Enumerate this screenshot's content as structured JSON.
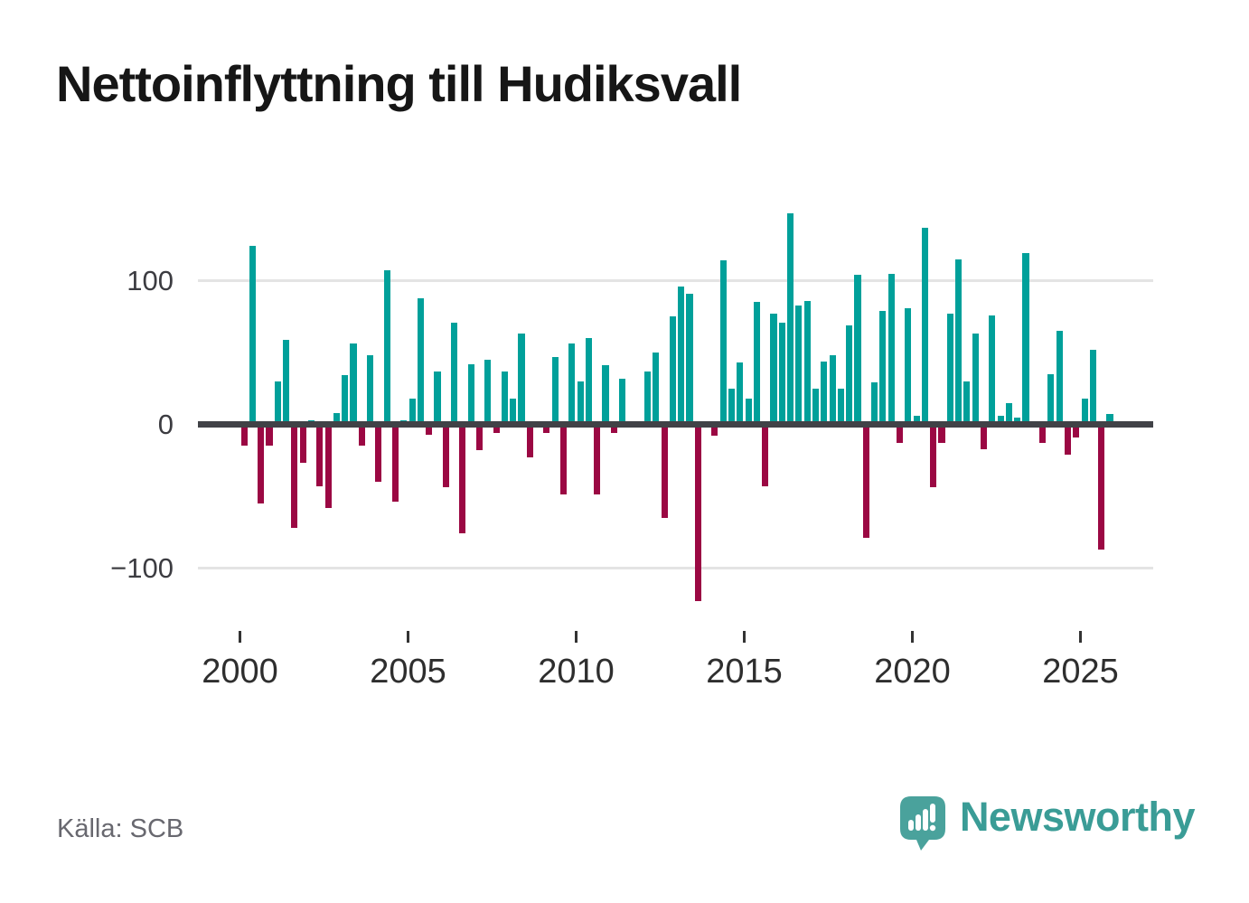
{
  "header": {
    "title": "Nettoinflyttning till Hudiksvall"
  },
  "chart_data": {
    "type": "bar",
    "title": "Nettoinflyttning till Hudiksvall",
    "frequency": "quarterly",
    "start_year": 2000,
    "quarters_per_year": 4,
    "values": [
      -15,
      124,
      -55,
      -15,
      30,
      59,
      -72,
      -27,
      3,
      -43,
      -58,
      8,
      34,
      56,
      -15,
      48,
      -40,
      107,
      -54,
      3,
      18,
      88,
      -7,
      37,
      -44,
      71,
      -76,
      42,
      -18,
      45,
      -6,
      37,
      18,
      63,
      -23,
      0,
      -6,
      47,
      -49,
      56,
      30,
      60,
      -49,
      41,
      -6,
      32,
      0,
      0,
      37,
      50,
      -65,
      75,
      96,
      91,
      -123,
      2,
      -8,
      114,
      25,
      43,
      18,
      85,
      -43,
      77,
      71,
      147,
      83,
      86,
      25,
      44,
      48,
      25,
      69,
      104,
      -79,
      29,
      79,
      105,
      -13,
      81,
      6,
      137,
      -44,
      -13,
      77,
      115,
      30,
      63,
      -17,
      76,
      6,
      15,
      5,
      119,
      0,
      -13,
      35,
      65,
      -21,
      -9,
      18,
      52,
      -87,
      7
    ],
    "x_tick_years": [
      2000,
      2005,
      2010,
      2015,
      2020,
      2025
    ],
    "y_ticks": [
      100,
      0,
      -100
    ],
    "ylim": [
      -130,
      155
    ],
    "grid": "horizontal",
    "legend": "none",
    "colors": {
      "positive": "#00a09a",
      "negative": "#9b0843",
      "axis": "#414247",
      "grid": "#e4e4e4"
    }
  },
  "source": {
    "label": "Källa: SCB"
  },
  "branding": {
    "logo_text": "Newsworthy",
    "logo_color": "#3a9c96",
    "icon": "speech-bubble-bar-chart"
  }
}
